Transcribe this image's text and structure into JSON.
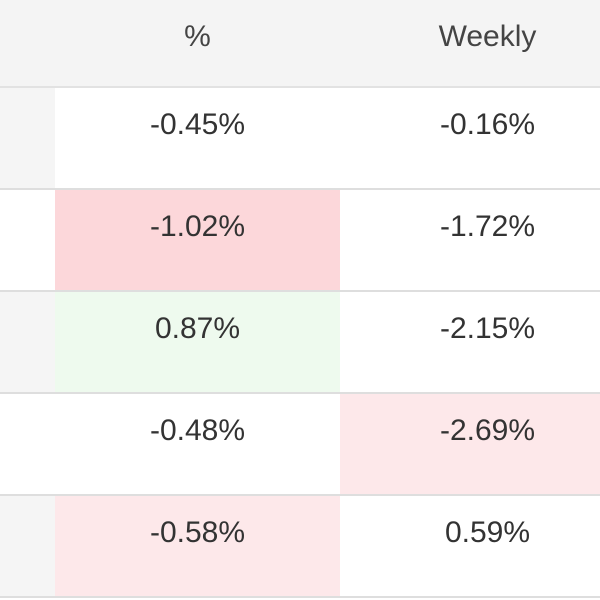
{
  "table": {
    "header": [
      "%",
      "Weekly"
    ],
    "rows": [
      [
        "-0.45%",
        "-0.16%"
      ],
      [
        "-1.02%",
        "-1.72%"
      ],
      [
        "0.87%",
        "-2.15%"
      ],
      [
        "-0.48%",
        "-2.69%"
      ],
      [
        "-0.58%",
        "0.59%"
      ]
    ]
  }
}
